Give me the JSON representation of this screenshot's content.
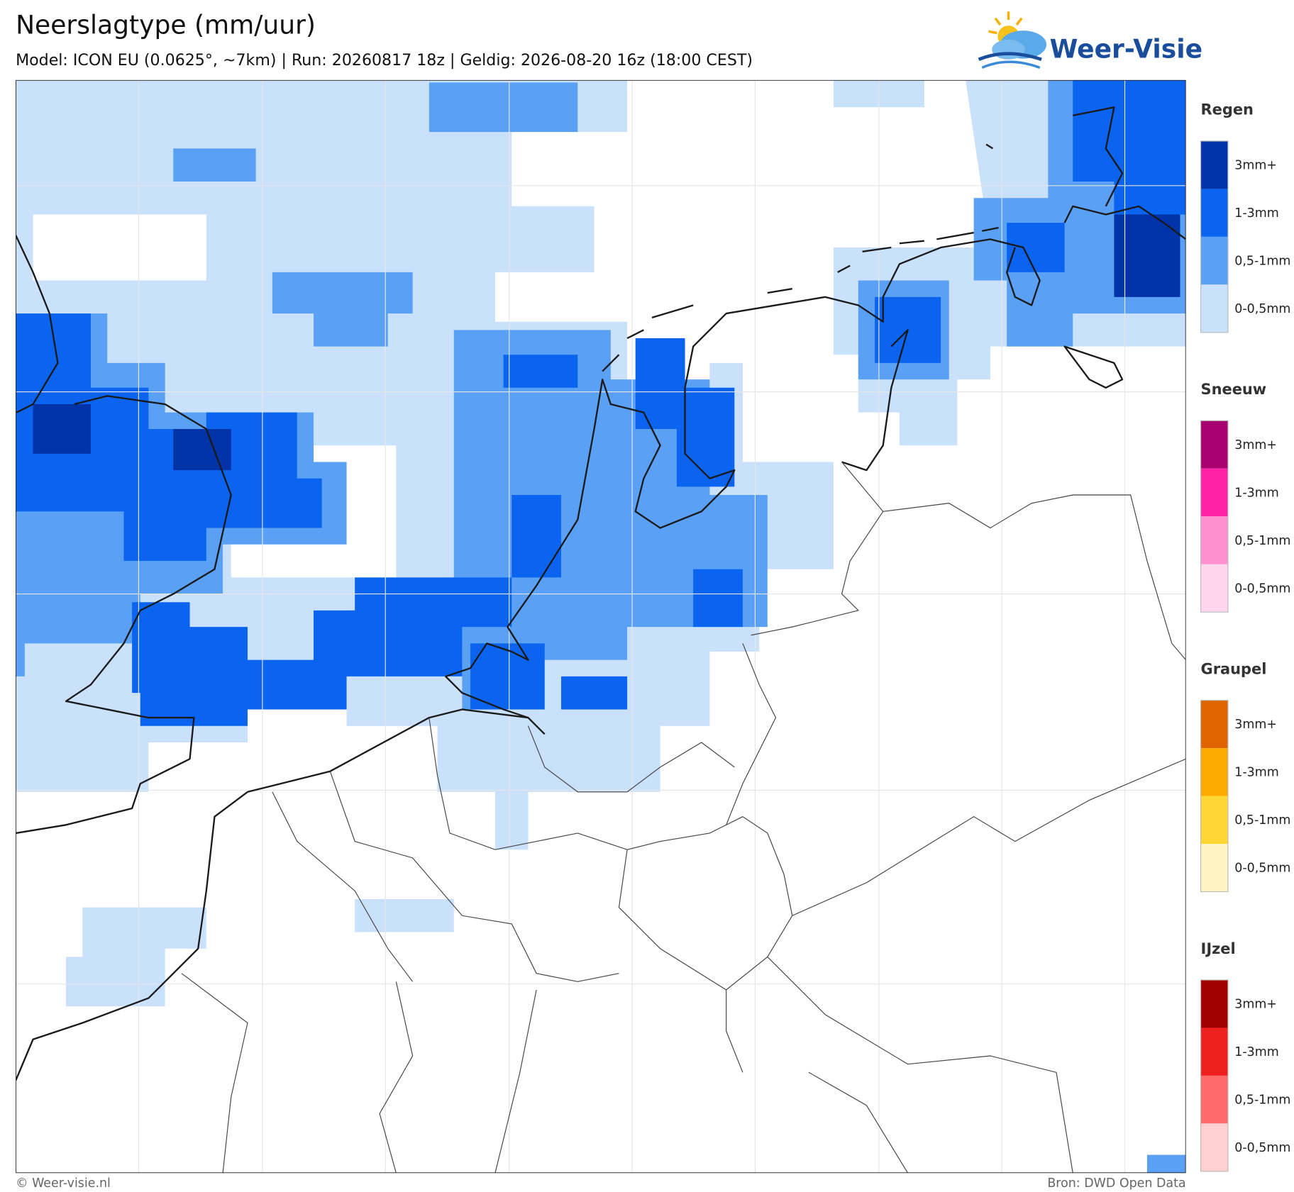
{
  "header": {
    "title": "Neerslagtype (mm/uur)",
    "subtitle": "Model: ICON EU (0.0625°, ~7km)  |  Run: 20260817 18z  |  Geldig: 2026-08-20 16z (18:00 CEST)",
    "logo": "Weer-Visie"
  },
  "legend": [
    {
      "name": "Regen",
      "items": [
        {
          "label": "3mm+",
          "color": "#0033a8"
        },
        {
          "label": "1-3mm",
          "color": "#0a64f0"
        },
        {
          "label": "0,5-1mm",
          "color": "#5aa0f5"
        },
        {
          "label": "0-0,5mm",
          "color": "#c9e1fb"
        }
      ]
    },
    {
      "name": "Sneeuw",
      "items": [
        {
          "label": "3mm+",
          "color": "#a8006e"
        },
        {
          "label": "1-3mm",
          "color": "#ff22a8"
        },
        {
          "label": "0,5-1mm",
          "color": "#ff8fce"
        },
        {
          "label": "0-0,5mm",
          "color": "#ffd6ee"
        }
      ]
    },
    {
      "name": "Graupel",
      "items": [
        {
          "label": "3mm+",
          "color": "#e06400"
        },
        {
          "label": "1-3mm",
          "color": "#ffaa00"
        },
        {
          "label": "0,5-1mm",
          "color": "#ffd633"
        },
        {
          "label": "0-0,5mm",
          "color": "#fff3c4"
        }
      ]
    },
    {
      "name": "IJzel",
      "items": [
        {
          "label": "3mm+",
          "color": "#a00000"
        },
        {
          "label": "1-3mm",
          "color": "#ee2020"
        },
        {
          "label": "0,5-1mm",
          "color": "#ff6b6b"
        },
        {
          "label": "0-0,5mm",
          "color": "#ffd0d0"
        }
      ]
    }
  ],
  "footer": {
    "left": "© Weer-visie.nl",
    "right": "Bron: DWD Open Data"
  }
}
